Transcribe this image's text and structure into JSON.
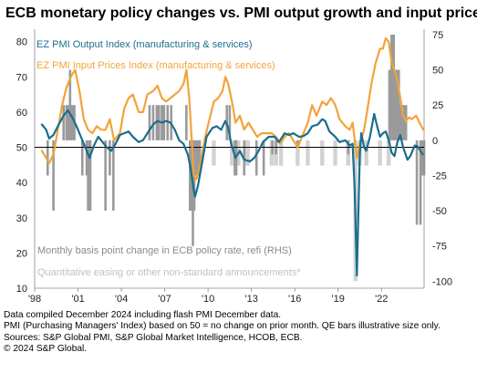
{
  "title": "ECB monetary policy changes vs. PMI output growth and input prices",
  "notes": [
    "Data compiled December 2024 including flash PMI December data.",
    "PMI (Purchasing Managers' Index) based on 50 = no change on prior month. QE bars illustrative size only.",
    "Sources: S&P Global PMI, S&P Global Market Intelligence, HCOB, ECB.",
    "© 2024 S&P Global."
  ],
  "colors": {
    "output": "#1a6e8c",
    "input": "#f2a33a",
    "rate_bars": "#9a9a9a",
    "qe_bars": "#d2d2d2",
    "legend_rate": "#8a8a8a",
    "legend_qe": "#c0c0c0"
  },
  "chart_data": {
    "type": "line",
    "legend": {
      "output": "EZ PMI Output Index (manufacturing & services)",
      "input": "EZ PMI Input Prices Index (manufacturing & services)",
      "rate": "Monthly basis point change in ECB policy rate, refi (RHS)",
      "qe": "Quantitative easing or other non-standard announcements*"
    },
    "x_range": [
      1998,
      2024.95
    ],
    "x_ticks": [
      {
        "label": "'98",
        "x": 1998
      },
      {
        "label": "'01",
        "x": 2001
      },
      {
        "label": "'04",
        "x": 2004
      },
      {
        "label": "'07",
        "x": 2007
      },
      {
        "label": "'10",
        "x": 2010
      },
      {
        "label": "'13",
        "x": 2013
      },
      {
        "label": "'16",
        "x": 2016
      },
      {
        "label": "'19",
        "x": 2019
      },
      {
        "label": "'22",
        "x": 2022
      }
    ],
    "y_left": {
      "range": [
        10,
        82
      ],
      "ticks": [
        10,
        20,
        30,
        40,
        50,
        60,
        70,
        80
      ],
      "baseline": 50
    },
    "y_right": {
      "range": [
        -105,
        75
      ],
      "ticks": [
        -100,
        -75,
        -50,
        -25,
        0,
        25,
        50,
        75
      ]
    },
    "series": [
      {
        "key": "output",
        "name": "EZ PMI Output Index (manufacturing & services)",
        "points": [
          [
            1998.5,
            56.5
          ],
          [
            1998.8,
            55
          ],
          [
            1999.0,
            52.5
          ],
          [
            1999.3,
            53.5
          ],
          [
            1999.6,
            56
          ],
          [
            2000.0,
            59
          ],
          [
            2000.3,
            60.5
          ],
          [
            2000.6,
            58.5
          ],
          [
            2000.9,
            56
          ],
          [
            2001.2,
            53
          ],
          [
            2001.5,
            50
          ],
          [
            2001.8,
            47
          ],
          [
            2002.1,
            50.5
          ],
          [
            2002.4,
            53
          ],
          [
            2002.7,
            51.5
          ],
          [
            2003.0,
            50
          ],
          [
            2003.3,
            49
          ],
          [
            2003.6,
            51
          ],
          [
            2003.9,
            53.5
          ],
          [
            2004.2,
            54
          ],
          [
            2004.5,
            54.5
          ],
          [
            2004.8,
            53
          ],
          [
            2005.2,
            51.5
          ],
          [
            2005.5,
            52
          ],
          [
            2005.8,
            54
          ],
          [
            2006.2,
            56.5
          ],
          [
            2006.5,
            57.5
          ],
          [
            2006.8,
            57
          ],
          [
            2007.1,
            57.5
          ],
          [
            2007.4,
            57
          ],
          [
            2007.7,
            55
          ],
          [
            2008.0,
            52
          ],
          [
            2008.3,
            51
          ],
          [
            2008.6,
            48
          ],
          [
            2008.8,
            44
          ],
          [
            2009.0,
            38
          ],
          [
            2009.1,
            36
          ],
          [
            2009.3,
            39
          ],
          [
            2009.6,
            46
          ],
          [
            2009.9,
            53
          ],
          [
            2010.3,
            55.5
          ],
          [
            2010.6,
            56
          ],
          [
            2010.9,
            55
          ],
          [
            2011.2,
            57.5
          ],
          [
            2011.4,
            55.5
          ],
          [
            2011.6,
            51
          ],
          [
            2011.9,
            47
          ],
          [
            2012.2,
            49
          ],
          [
            2012.5,
            46.5
          ],
          [
            2012.9,
            46
          ],
          [
            2013.2,
            47
          ],
          [
            2013.5,
            49
          ],
          [
            2013.8,
            51.5
          ],
          [
            2014.2,
            53
          ],
          [
            2014.6,
            53
          ],
          [
            2014.9,
            51.5
          ],
          [
            2015.3,
            54
          ],
          [
            2015.6,
            53.5
          ],
          [
            2015.9,
            54
          ],
          [
            2016.3,
            53
          ],
          [
            2016.6,
            53.2
          ],
          [
            2016.9,
            54
          ],
          [
            2017.2,
            56
          ],
          [
            2017.6,
            56.5
          ],
          [
            2017.9,
            58
          ],
          [
            2018.1,
            57.5
          ],
          [
            2018.4,
            54.5
          ],
          [
            2018.8,
            53
          ],
          [
            2019.1,
            51.5
          ],
          [
            2019.5,
            52
          ],
          [
            2019.8,
            50.5
          ],
          [
            2020.0,
            51
          ],
          [
            2020.15,
            38
          ],
          [
            2020.3,
            13.6
          ],
          [
            2020.4,
            31
          ],
          [
            2020.5,
            48
          ],
          [
            2020.6,
            54
          ],
          [
            2020.8,
            50
          ],
          [
            2020.95,
            49
          ],
          [
            2021.2,
            53
          ],
          [
            2021.5,
            59.5
          ],
          [
            2021.7,
            56
          ],
          [
            2021.9,
            53
          ],
          [
            2022.1,
            54
          ],
          [
            2022.3,
            54.5
          ],
          [
            2022.5,
            52
          ],
          [
            2022.7,
            48.5
          ],
          [
            2022.9,
            47.5
          ],
          [
            2023.1,
            51.5
          ],
          [
            2023.3,
            53.5
          ],
          [
            2023.5,
            50
          ],
          [
            2023.8,
            46.5
          ],
          [
            2024.0,
            47.5
          ],
          [
            2024.3,
            50.5
          ],
          [
            2024.5,
            50.3
          ],
          [
            2024.7,
            49
          ],
          [
            2024.85,
            48
          ]
        ]
      },
      {
        "key": "input",
        "name": "EZ PMI Input Prices Index (manufacturing & services)",
        "points": [
          [
            1998.5,
            49
          ],
          [
            1998.8,
            47
          ],
          [
            1999.0,
            45.5
          ],
          [
            1999.3,
            48
          ],
          [
            1999.6,
            55
          ],
          [
            1999.9,
            62
          ],
          [
            2000.2,
            67
          ],
          [
            2000.5,
            70
          ],
          [
            2000.8,
            72
          ],
          [
            2001.1,
            66
          ],
          [
            2001.4,
            58
          ],
          [
            2001.7,
            55
          ],
          [
            2002.0,
            54
          ],
          [
            2002.3,
            56
          ],
          [
            2002.6,
            55
          ],
          [
            2002.9,
            55
          ],
          [
            2003.2,
            58
          ],
          [
            2003.5,
            52
          ],
          [
            2003.9,
            54
          ],
          [
            2004.2,
            61
          ],
          [
            2004.5,
            64
          ],
          [
            2004.8,
            65
          ],
          [
            2005.2,
            60
          ],
          [
            2005.5,
            60
          ],
          [
            2005.8,
            65
          ],
          [
            2006.2,
            66
          ],
          [
            2006.5,
            67.5
          ],
          [
            2006.8,
            64
          ],
          [
            2007.1,
            63
          ],
          [
            2007.4,
            64
          ],
          [
            2007.7,
            65
          ],
          [
            2008.0,
            66
          ],
          [
            2008.3,
            68
          ],
          [
            2008.5,
            72
          ],
          [
            2008.7,
            64
          ],
          [
            2008.9,
            50
          ],
          [
            2009.0,
            42
          ],
          [
            2009.2,
            41
          ],
          [
            2009.5,
            46
          ],
          [
            2009.8,
            53
          ],
          [
            2010.1,
            58
          ],
          [
            2010.4,
            63
          ],
          [
            2010.7,
            64
          ],
          [
            2011.0,
            66
          ],
          [
            2011.2,
            70
          ],
          [
            2011.4,
            68
          ],
          [
            2011.7,
            62
          ],
          [
            2011.9,
            57
          ],
          [
            2012.2,
            59
          ],
          [
            2012.5,
            55
          ],
          [
            2012.8,
            57
          ],
          [
            2013.1,
            55
          ],
          [
            2013.4,
            53
          ],
          [
            2013.7,
            54
          ],
          [
            2014.0,
            54
          ],
          [
            2014.4,
            54
          ],
          [
            2014.7,
            53
          ],
          [
            2015.0,
            51
          ],
          [
            2015.3,
            53
          ],
          [
            2015.6,
            54
          ],
          [
            2015.9,
            52
          ],
          [
            2016.2,
            50
          ],
          [
            2016.5,
            53
          ],
          [
            2016.9,
            57
          ],
          [
            2017.2,
            62
          ],
          [
            2017.5,
            59
          ],
          [
            2017.9,
            63
          ],
          [
            2018.2,
            62
          ],
          [
            2018.5,
            64
          ],
          [
            2018.8,
            62
          ],
          [
            2019.1,
            58
          ],
          [
            2019.5,
            56
          ],
          [
            2019.8,
            55
          ],
          [
            2020.0,
            57
          ],
          [
            2020.3,
            47
          ],
          [
            2020.5,
            51
          ],
          [
            2020.8,
            55
          ],
          [
            2021.0,
            60
          ],
          [
            2021.3,
            68
          ],
          [
            2021.6,
            74
          ],
          [
            2021.9,
            78
          ],
          [
            2022.1,
            78
          ],
          [
            2022.3,
            81
          ],
          [
            2022.5,
            80
          ],
          [
            2022.7,
            74
          ],
          [
            2022.9,
            72
          ],
          [
            2023.1,
            69
          ],
          [
            2023.3,
            64
          ],
          [
            2023.5,
            59
          ],
          [
            2023.7,
            57.5
          ],
          [
            2023.9,
            58.5
          ],
          [
            2024.1,
            58
          ],
          [
            2024.4,
            59
          ],
          [
            2024.7,
            56.5
          ],
          [
            2024.9,
            55
          ]
        ]
      }
    ],
    "rate_bars": [
      [
        1998.9,
        -25
      ],
      [
        1999.3,
        -50
      ],
      [
        2000.0,
        25
      ],
      [
        2000.2,
        25
      ],
      [
        2000.3,
        25
      ],
      [
        2000.45,
        50
      ],
      [
        2000.6,
        25
      ],
      [
        2000.75,
        25
      ],
      [
        2001.3,
        -25
      ],
      [
        2001.6,
        -25
      ],
      [
        2001.7,
        -50
      ],
      [
        2001.85,
        -50
      ],
      [
        2002.9,
        -50
      ],
      [
        2003.2,
        -25
      ],
      [
        2003.45,
        -50
      ],
      [
        2005.95,
        25
      ],
      [
        2006.2,
        25
      ],
      [
        2006.45,
        25
      ],
      [
        2006.6,
        25
      ],
      [
        2006.8,
        25
      ],
      [
        2006.95,
        25
      ],
      [
        2007.2,
        25
      ],
      [
        2007.45,
        25
      ],
      [
        2008.5,
        25
      ],
      [
        2008.75,
        -50
      ],
      [
        2008.85,
        -50
      ],
      [
        2008.95,
        -75
      ],
      [
        2009.05,
        -50
      ],
      [
        2009.2,
        -25
      ],
      [
        2009.3,
        -25
      ],
      [
        2009.4,
        -25
      ],
      [
        2011.3,
        25
      ],
      [
        2011.5,
        25
      ],
      [
        2011.85,
        -25
      ],
      [
        2011.95,
        -25
      ],
      [
        2012.5,
        -25
      ],
      [
        2013.35,
        -25
      ],
      [
        2013.85,
        -25
      ],
      [
        2014.45,
        -10
      ],
      [
        2014.7,
        -10
      ],
      [
        2016.2,
        -5
      ],
      [
        2019.7,
        -10
      ],
      [
        2022.55,
        50
      ],
      [
        2022.7,
        75
      ],
      [
        2022.85,
        75
      ],
      [
        2022.95,
        50
      ],
      [
        2023.1,
        50
      ],
      [
        2023.2,
        50
      ],
      [
        2023.35,
        25
      ],
      [
        2023.45,
        25
      ],
      [
        2023.55,
        25
      ],
      [
        2023.7,
        25
      ],
      [
        2024.45,
        -60
      ],
      [
        2024.7,
        -60
      ],
      [
        2024.8,
        -25
      ],
      [
        2024.95,
        -25
      ]
    ],
    "qe_bars": [
      [
        2008.8,
        -18
      ],
      [
        2009.4,
        -18
      ],
      [
        2010.4,
        -18
      ],
      [
        2011.65,
        -18
      ],
      [
        2011.9,
        -18
      ],
      [
        2012.1,
        -18
      ],
      [
        2012.6,
        -18
      ],
      [
        2012.75,
        -18
      ],
      [
        2014.4,
        -18
      ],
      [
        2014.7,
        -18
      ],
      [
        2015.05,
        -18
      ],
      [
        2016.2,
        -18
      ],
      [
        2016.9,
        -18
      ],
      [
        2017.9,
        -18
      ],
      [
        2018.8,
        -18
      ],
      [
        2019.7,
        -18
      ],
      [
        2020.2,
        -100
      ],
      [
        2020.5,
        -18
      ],
      [
        2020.95,
        -18
      ],
      [
        2021.9,
        -18
      ],
      [
        2022.5,
        -18
      ]
    ]
  }
}
